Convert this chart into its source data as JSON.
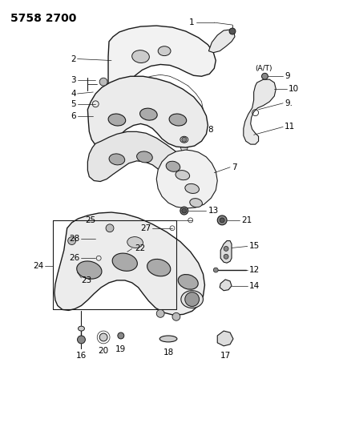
{
  "title": "5758 2700",
  "bg_color": "#ffffff",
  "line_color": "#1a1a1a",
  "text_color": "#000000",
  "font_size_title": 10,
  "font_size_label": 7.5,
  "figsize": [
    4.28,
    5.33
  ],
  "dpi": 100
}
